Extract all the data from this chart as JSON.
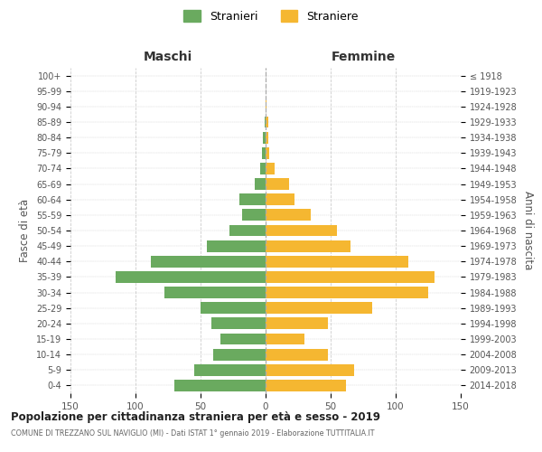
{
  "age_groups": [
    "100+",
    "95-99",
    "90-94",
    "85-89",
    "80-84",
    "75-79",
    "70-74",
    "65-69",
    "60-64",
    "55-59",
    "50-54",
    "45-49",
    "40-44",
    "35-39",
    "30-34",
    "25-29",
    "20-24",
    "15-19",
    "10-14",
    "5-9",
    "0-4"
  ],
  "birth_years": [
    "≤ 1918",
    "1919-1923",
    "1924-1928",
    "1929-1933",
    "1934-1938",
    "1939-1943",
    "1944-1948",
    "1949-1953",
    "1954-1958",
    "1959-1963",
    "1964-1968",
    "1969-1973",
    "1974-1978",
    "1979-1983",
    "1984-1988",
    "1989-1993",
    "1994-1998",
    "1999-2003",
    "2004-2008",
    "2009-2013",
    "2014-2018"
  ],
  "males": [
    0,
    0,
    0,
    1,
    2,
    3,
    4,
    8,
    20,
    18,
    28,
    45,
    88,
    115,
    78,
    50,
    42,
    35,
    40,
    55,
    70
  ],
  "females": [
    0,
    0,
    1,
    2,
    2,
    3,
    7,
    18,
    22,
    35,
    55,
    65,
    110,
    130,
    125,
    82,
    48,
    30,
    48,
    68,
    62
  ],
  "male_color": "#6aaa5f",
  "female_color": "#f5b731",
  "title": "Popolazione per cittadinanza straniera per età e sesso - 2019",
  "subtitle": "COMUNE DI TREZZANO SUL NAVIGLIO (MI) - Dati ISTAT 1° gennaio 2019 - Elaborazione TUTTITALIA.IT",
  "ylabel_left": "Fasce di età",
  "ylabel_right": "Anni di nascita",
  "header_left": "Maschi",
  "header_right": "Femmine",
  "legend_male": "Stranieri",
  "legend_female": "Straniere",
  "xlim": 150,
  "background_color": "#ffffff",
  "grid_color": "#cccccc"
}
